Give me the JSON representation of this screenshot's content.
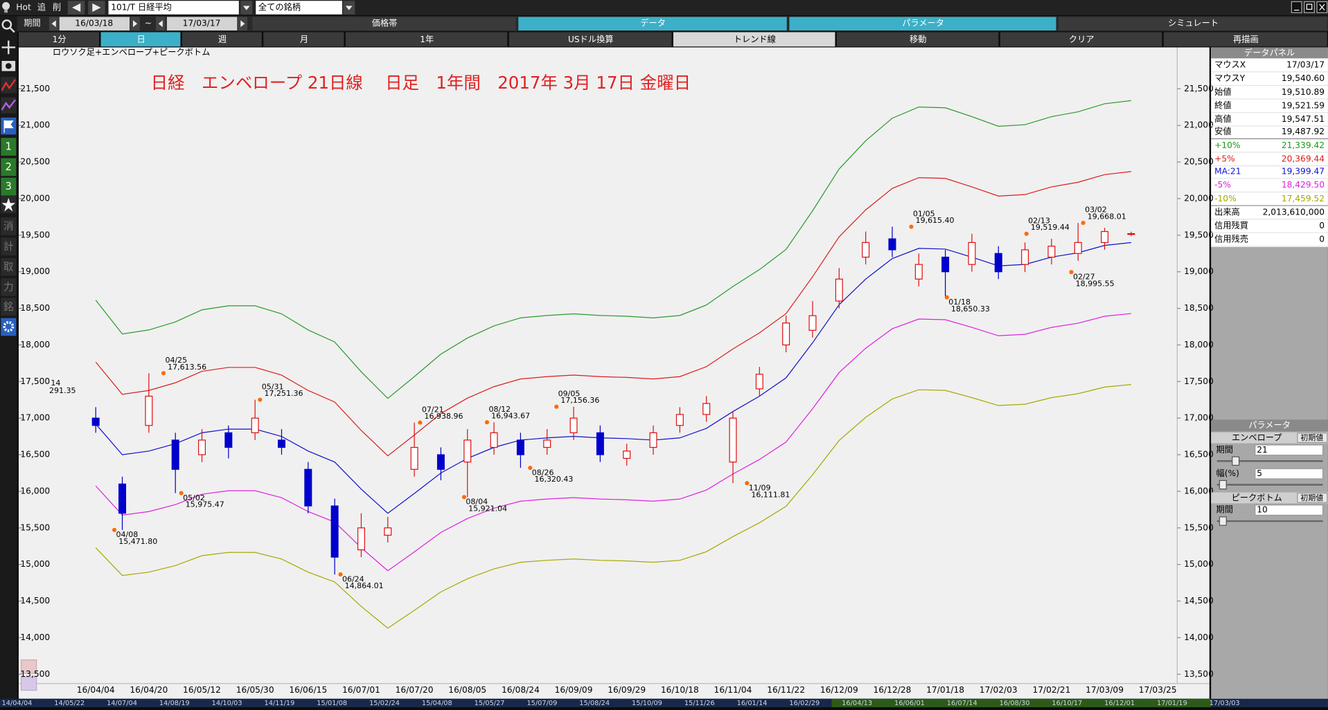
{
  "toolbar": {
    "items": [
      "Hot",
      "追",
      "削"
    ],
    "symbol": "101/T 日経平均",
    "filter": "全ての銘柄"
  },
  "period": {
    "label": "期間",
    "from": "16/03/18",
    "sep": "~",
    "to": "17/03/17"
  },
  "tabs": [
    "価格帯",
    "データ",
    "パラメータ",
    "シミュレート"
  ],
  "buttons": [
    "1分",
    "日",
    "週",
    "月",
    "1年",
    "USドル換算",
    "トレンド線",
    "移動",
    "クリア",
    "再描画"
  ],
  "side_labels": [
    "1",
    "2",
    "3",
    "消",
    "計",
    "取",
    "力",
    "銘"
  ],
  "chart_data": {
    "type": "candlestick",
    "subtitle": "ロウソク足+エンベロープ+ピークボトム",
    "title": "日経　エンベロープ 21日線　 日足　1年間　2017年 3月 17日 金曜日",
    "categories": [
      "16/04/04",
      null,
      "16/04/20",
      null,
      "16/05/12",
      null,
      "16/05/30",
      null,
      "16/06/15",
      null,
      "16/07/01",
      null,
      "16/07/20",
      null,
      "16/08/05",
      null,
      "16/08/24",
      null,
      "16/09/09",
      null,
      "16/09/29",
      null,
      "16/10/18",
      null,
      "16/11/04",
      null,
      "16/11/22",
      null,
      "16/12/09",
      null,
      "16/12/28",
      null,
      "17/01/18",
      null,
      "17/02/03",
      null,
      "17/02/21",
      null,
      "17/03/09",
      null,
      "17/03/25"
    ],
    "open": [
      17000,
      16100,
      16900,
      16700,
      16500,
      16800,
      16800,
      16700,
      16300,
      15800,
      15200,
      15400,
      16300,
      16500,
      16400,
      16600,
      16700,
      16600,
      16800,
      16800,
      16450,
      16600,
      16900,
      17050,
      16400,
      17400,
      18000,
      18200,
      18600,
      19200,
      19450,
      18900,
      19200,
      19100,
      19250,
      19100,
      19200,
      19250,
      19400,
      19510.89,
      null
    ],
    "high": [
      17150,
      16200,
      17613.56,
      16800,
      16850,
      16900,
      17251.36,
      16850,
      16400,
      15900,
      15700,
      15650,
      16938.96,
      16600,
      16850,
      16943.67,
      16800,
      16850,
      17156.36,
      16900,
      16650,
      16900,
      17150,
      17300,
      17100,
      17700,
      18400,
      18600,
      19050,
      19550,
      19615.4,
      19250,
      19300,
      19519.44,
      19350,
      19400,
      19450,
      19668.01,
      19600,
      19547.51,
      null
    ],
    "low": [
      16800,
      15471.8,
      16800,
      15975.47,
      16400,
      16450,
      16700,
      16500,
      15700,
      14864.01,
      15100,
      15300,
      16200,
      16150,
      15921.04,
      16500,
      16320.43,
      16500,
      16700,
      16400,
      16350,
      16500,
      16800,
      16950,
      16111.81,
      17300,
      17900,
      18100,
      18500,
      19100,
      19200,
      18800,
      18650.33,
      19000,
      18900,
      18995.55,
      19100,
      19150,
      19300,
      19487.92,
      null
    ],
    "close": [
      16900,
      15700,
      17300,
      16300,
      16700,
      16600,
      17000,
      16600,
      15800,
      15100,
      15500,
      15500,
      16600,
      16300,
      16700,
      16800,
      16500,
      16700,
      17000,
      16500,
      16550,
      16800,
      17050,
      17200,
      17000,
      17600,
      18300,
      18400,
      18900,
      19400,
      19300,
      19100,
      19000,
      19400,
      19000,
      19300,
      19350,
      19400,
      19550,
      19521.59,
      null
    ],
    "up_color": "#e01010",
    "down_color": "#0000cc",
    "series": [
      {
        "name": "+10%",
        "color": "#2a9a2a",
        "values": [
          18612,
          18150,
          18205,
          18315,
          18480,
          18535,
          18535,
          18425,
          18205,
          18040,
          17633,
          17270,
          17567,
          17875,
          18095,
          18260,
          18370,
          18403,
          18425,
          18403,
          18392,
          18370,
          18403,
          18546,
          18799,
          19030,
          19305,
          19833,
          20405,
          20790,
          21098,
          21252,
          21241,
          21120,
          20988,
          21010,
          21120,
          21186,
          21296,
          21339.42,
          null
        ]
      },
      {
        "name": "+5%",
        "color": "#dd1c1c",
        "values": [
          17766,
          17325,
          17378,
          17483,
          17640,
          17693,
          17693,
          17588,
          17378,
          17220,
          16832,
          16485,
          16769,
          17063,
          17273,
          17430,
          17535,
          17567,
          17588,
          17567,
          17556,
          17535,
          17567,
          17703,
          17945,
          18165,
          18428,
          18932,
          19478,
          19845,
          20139,
          20286,
          20276,
          20160,
          20034,
          20055,
          20160,
          20223,
          20328,
          20369.44,
          null
        ]
      },
      {
        "name": "MA:21",
        "color": "#1010cc",
        "values": [
          16920,
          16500,
          16550,
          16650,
          16800,
          16850,
          16850,
          16750,
          16550,
          16400,
          16030,
          15700,
          15970,
          16250,
          16450,
          16600,
          16700,
          16730,
          16750,
          16730,
          16720,
          16700,
          16730,
          16860,
          17090,
          17300,
          17550,
          18030,
          18550,
          18900,
          19180,
          19320,
          19310,
          19200,
          19080,
          19100,
          19200,
          19260,
          19360,
          19399.47,
          null
        ]
      },
      {
        "name": "-5%",
        "color": "#dd22dd",
        "values": [
          16074,
          15675,
          15723,
          15818,
          15960,
          16008,
          16008,
          15913,
          15723,
          15580,
          15229,
          14915,
          15172,
          15438,
          15628,
          15770,
          15865,
          15894,
          15913,
          15894,
          15884,
          15865,
          15894,
          16017,
          16236,
          16435,
          16673,
          17129,
          17623,
          17955,
          18221,
          18354,
          18345,
          18240,
          18126,
          18145,
          18240,
          18297,
          18392,
          18429.5,
          null
        ]
      },
      {
        "name": "-10%",
        "color": "#a8a800",
        "values": [
          15228,
          14850,
          14895,
          14985,
          15120,
          15165,
          15165,
          15075,
          14895,
          14760,
          14427,
          14130,
          14373,
          14625,
          14805,
          14940,
          15030,
          15057,
          15075,
          15057,
          15048,
          15030,
          15057,
          15174,
          15381,
          15570,
          15795,
          16227,
          16695,
          17010,
          17262,
          17388,
          17379,
          17280,
          17172,
          17190,
          17280,
          17334,
          17424,
          17459.52,
          null
        ]
      }
    ],
    "ylim": [
      13400,
      22000
    ],
    "yticks": [
      {
        "value": 13500,
        "label": "13,500"
      },
      {
        "value": 14000,
        "label": "14,000"
      },
      {
        "value": 14500,
        "label": "14,500"
      },
      {
        "value": 15000,
        "label": "15,000"
      },
      {
        "value": 15500,
        "label": "15,500"
      },
      {
        "value": 16000,
        "label": "16,000"
      },
      {
        "value": 16500,
        "label": "16,500"
      },
      {
        "value": 17000,
        "label": "17,000"
      },
      {
        "value": 17500,
        "label": "17,500"
      },
      {
        "value": 18000,
        "label": "18,000"
      },
      {
        "value": 18500,
        "label": "18,500"
      },
      {
        "value": 19000,
        "label": "19,000"
      },
      {
        "value": 19500,
        "label": "19,500"
      },
      {
        "value": 20000,
        "label": "20,000"
      },
      {
        "value": 20500,
        "label": "20,500"
      },
      {
        "value": 21000,
        "label": "21,000"
      },
      {
        "value": 21500,
        "label": "21,500"
      }
    ],
    "marker_color": "#ff6a00",
    "annotations": [
      {
        "date": "04/08",
        "label": "15,471.80",
        "value": 15471.8
      },
      {
        "date": "04/25",
        "label": "17,613.56",
        "value": 17613.56
      },
      {
        "date": "05/02",
        "label": "15,975.47",
        "value": 15975.47
      },
      {
        "date": "05/31",
        "label": "17,251.36",
        "value": 17251.36
      },
      {
        "date": "06/24",
        "label": "14,864.01",
        "value": 14864.01
      },
      {
        "date": "07/21",
        "label": "16,938.96",
        "value": 16938.96
      },
      {
        "date": "08/04",
        "label": "15,921.04",
        "value": 15921.04
      },
      {
        "date": "08/12",
        "label": "16,943.67",
        "value": 16943.67
      },
      {
        "date": "08/26",
        "label": "16,320.43",
        "value": 16320.43
      },
      {
        "date": "09/05",
        "label": "17,156.36",
        "value": 17156.36
      },
      {
        "date": "11/09",
        "label": "16,111.81",
        "value": 16111.81
      },
      {
        "date": "01/05",
        "label": "19,615.40",
        "value": 19615.4
      },
      {
        "date": "01/18",
        "label": "18,650.33",
        "value": 18650.33
      },
      {
        "date": "02/13",
        "label": "19,519.44",
        "value": 19519.44
      },
      {
        "date": "02/27",
        "label": "18,995.55",
        "value": 18995.55
      },
      {
        "date": "03/02",
        "label": "19,668.01",
        "value": 19668.01
      }
    ],
    "edge_labels": [
      "14",
      "291.35"
    ]
  },
  "data_panel": {
    "title": "データパネル",
    "rows": [
      [
        "マウスX",
        "17/03/17"
      ],
      [
        "マウスY",
        "19,540.60"
      ],
      [
        "始値",
        "19,510.89"
      ],
      [
        "終値",
        "19,521.59"
      ],
      [
        "高値",
        "19,547.51"
      ],
      [
        "安値",
        "19,487.92"
      ],
      [
        "+10%",
        "21,339.42"
      ],
      [
        "+5%",
        "20,369.44"
      ],
      [
        "MA:21",
        "19,399.47"
      ],
      [
        "-5%",
        "18,429.50"
      ],
      [
        "-10%",
        "17,459.52"
      ],
      [
        "出来高",
        "2,013,610,000"
      ],
      [
        "信用残買",
        "0"
      ],
      [
        "信用残売",
        "0"
      ]
    ]
  },
  "param_panel": {
    "title": "パラメータ",
    "sections": [
      {
        "name": "エンベロープ",
        "reset": "初期値",
        "params": [
          [
            "期間",
            "21"
          ],
          [
            "幅(%)",
            "5"
          ]
        ]
      },
      {
        "name": "ピークボトム",
        "reset": "初期値",
        "params": [
          [
            "期間",
            "10"
          ]
        ]
      }
    ]
  },
  "timeline": [
    "14/04/04",
    "14/05/22",
    "14/07/04",
    "14/08/19",
    "14/10/03",
    "14/11/19",
    "15/01/08",
    "15/02/24",
    "15/04/08",
    "15/05/27",
    "15/07/09",
    "15/08/24",
    "15/10/09",
    "15/11/26",
    "16/01/14",
    "16/02/29",
    "16/04/13",
    "16/06/01",
    "16/07/14",
    "16/08/30",
    "16/10/17",
    "16/12/01",
    "17/01/19",
    "17/03/03"
  ]
}
